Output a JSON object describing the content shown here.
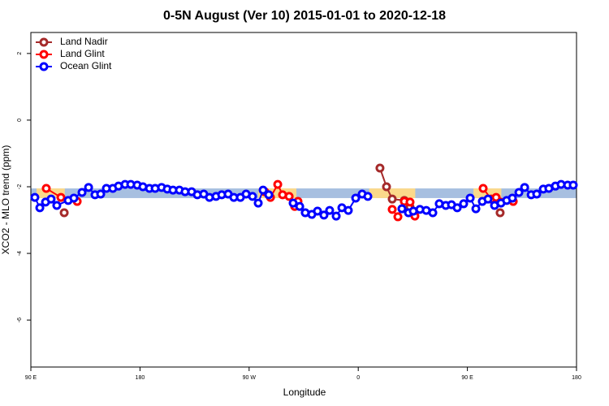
{
  "chart_data": {
    "type": "line",
    "title": "0-5N August (Ver 10)   2015-01-01 to 2020-12-18",
    "xlabel": "Longitude",
    "ylabel": "XCO2 - MLO trend (ppm)",
    "xlim": [
      90,
      540
    ],
    "ylim": [
      -7.41,
      2.63
    ],
    "xticks": [
      {
        "value": 90,
        "label": "90 E"
      },
      {
        "value": 180,
        "label": "180"
      },
      {
        "value": 270,
        "label": "90 W"
      },
      {
        "value": 360,
        "label": "0"
      },
      {
        "value": 450,
        "label": "90 E"
      },
      {
        "value": 540,
        "label": "180"
      }
    ],
    "yticks": [
      2,
      0,
      -2,
      -4,
      -6
    ],
    "band": [
      -2.34,
      -2.05
    ],
    "band_color": "#a7bfe0",
    "highlight_color": "#fbd98b",
    "highlight_ranges": [
      [
        94.7,
        118
      ],
      [
        277.5,
        309
      ],
      [
        369,
        407
      ],
      [
        455,
        478
      ]
    ],
    "legend": "top-left",
    "series": [
      {
        "name": "Land Nadir",
        "color": "#a52a2a",
        "x": [
          117.5,
          null,
          377.9,
          383.3,
          388.0,
          398.0,
          402.7,
          null,
          477.0
        ],
        "values": [
          -2.78,
          null,
          -1.44,
          -2.0,
          -2.37,
          -2.41,
          -2.61,
          null,
          -2.78
        ]
      },
      {
        "name": "Land Glint",
        "color": "#ff0000",
        "x": [
          102.7,
          114.8,
          128.2,
          null,
          282.9,
          287.6,
          293.6,
          297.6,
          303.0,
          307.6,
          310.3,
          null,
          388.0,
          392.7,
          398.0,
          402.7,
          406.7,
          null,
          463.0,
          469.7,
          473.7,
          487.8
        ],
        "values": [
          -2.05,
          -2.32,
          -2.44,
          null,
          -2.15,
          -2.32,
          -1.93,
          -2.24,
          -2.29,
          -2.59,
          -2.44,
          null,
          -2.68,
          -2.9,
          -2.44,
          -2.46,
          -2.88,
          null,
          -2.05,
          -2.37,
          -2.32,
          -2.44
        ]
      },
      {
        "name": "Ocean Glint",
        "color": "#0000ff",
        "x": [
          93.3,
          97.4,
          102.1,
          106.7,
          111.4,
          120.8,
          125.5,
          132.2,
          137.6,
          142.9,
          147.6,
          152.3,
          157.6,
          162.3,
          167.7,
          172.4,
          177.7,
          182.4,
          187.8,
          192.5,
          197.8,
          202.5,
          207.2,
          212.5,
          217.2,
          222.6,
          227.3,
          232.6,
          237.3,
          242.7,
          247.4,
          252.7,
          257.4,
          262.8,
          267.5,
          272.8,
          277.5,
          281.5,
          286.2,
          null,
          306.3,
          311.7,
          316.3,
          321.7,
          326.4,
          331.7,
          336.4,
          341.8,
          346.5,
          351.8,
          357.9,
          363.2,
          367.9,
          null,
          396.0,
          401.4,
          405.4,
          410.8,
          416.1,
          421.5,
          426.8,
          432.2,
          436.9,
          441.6,
          446.9,
          452.3,
          457.0,
          462.3,
          467.0,
          472.4,
          477.7,
          482.4,
          487.1,
          492.5,
          497.2,
          502.6,
          507.2,
          512.6,
          517.2,
          522.6,
          527.3,
          532.7,
          537.3
        ],
        "values": [
          -2.32,
          -2.63,
          -2.46,
          -2.37,
          -2.56,
          -2.41,
          -2.34,
          -2.17,
          -2.02,
          -2.24,
          -2.22,
          -2.05,
          -2.05,
          -1.98,
          -1.93,
          -1.93,
          -1.95,
          -2.0,
          -2.05,
          -2.05,
          -2.02,
          -2.07,
          -2.1,
          -2.1,
          -2.15,
          -2.15,
          -2.24,
          -2.22,
          -2.32,
          -2.29,
          -2.24,
          -2.22,
          -2.32,
          -2.32,
          -2.22,
          -2.29,
          -2.49,
          -2.1,
          -2.24,
          null,
          -2.49,
          -2.59,
          -2.78,
          -2.83,
          -2.73,
          -2.85,
          -2.71,
          -2.88,
          -2.63,
          -2.71,
          -2.34,
          -2.22,
          -2.29,
          null,
          -2.66,
          -2.78,
          -2.73,
          -2.68,
          -2.71,
          -2.78,
          -2.51,
          -2.56,
          -2.54,
          -2.63,
          -2.51,
          -2.34,
          -2.66,
          -2.44,
          -2.37,
          -2.56,
          -2.49,
          -2.41,
          -2.34,
          -2.17,
          -2.02,
          -2.24,
          -2.22,
          -2.07,
          -2.05,
          -1.98,
          -1.93,
          -1.95,
          -1.95
        ]
      }
    ]
  }
}
